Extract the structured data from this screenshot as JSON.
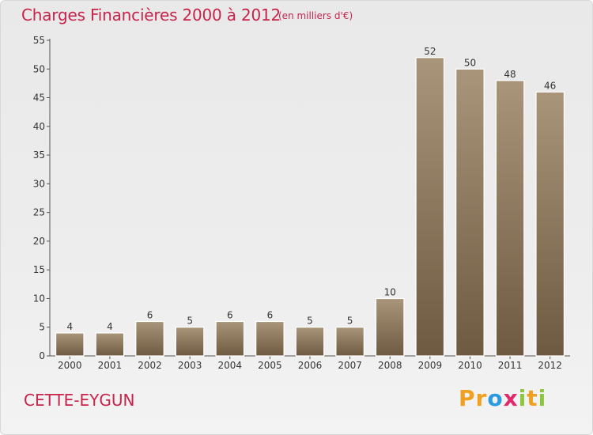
{
  "header": {
    "title": "Charges Financières 2000 à 2012",
    "unit": "(en milliers d'€)"
  },
  "footer": {
    "commune": "CETTE-EYGUN",
    "logo_letters": [
      "P",
      "r",
      "o",
      "x",
      "i",
      "t",
      "i"
    ],
    "logo_colors": [
      "#f0a020",
      "#f0a020",
      "#2a9be0",
      "#e02a6a",
      "#8cc63f",
      "#f0a020",
      "#8cc63f"
    ]
  },
  "colors": {
    "title": "#c8234a",
    "bar_top": "#a8957a",
    "bar_bottom": "#6e5a40",
    "axis": "#555555"
  },
  "chart_data": {
    "type": "bar",
    "categories": [
      "2000",
      "2001",
      "2002",
      "2003",
      "2004",
      "2005",
      "2006",
      "2007",
      "2008",
      "2009",
      "2010",
      "2011",
      "2012"
    ],
    "values": [
      4,
      4,
      6,
      5,
      6,
      6,
      5,
      5,
      10,
      52,
      50,
      48,
      46
    ],
    "title": "Charges Financières 2000 à 2012",
    "ylim": [
      0,
      55
    ],
    "yticks": [
      0,
      5,
      10,
      15,
      20,
      25,
      30,
      35,
      40,
      45,
      50,
      55
    ],
    "grid": false,
    "data_labels": true
  }
}
